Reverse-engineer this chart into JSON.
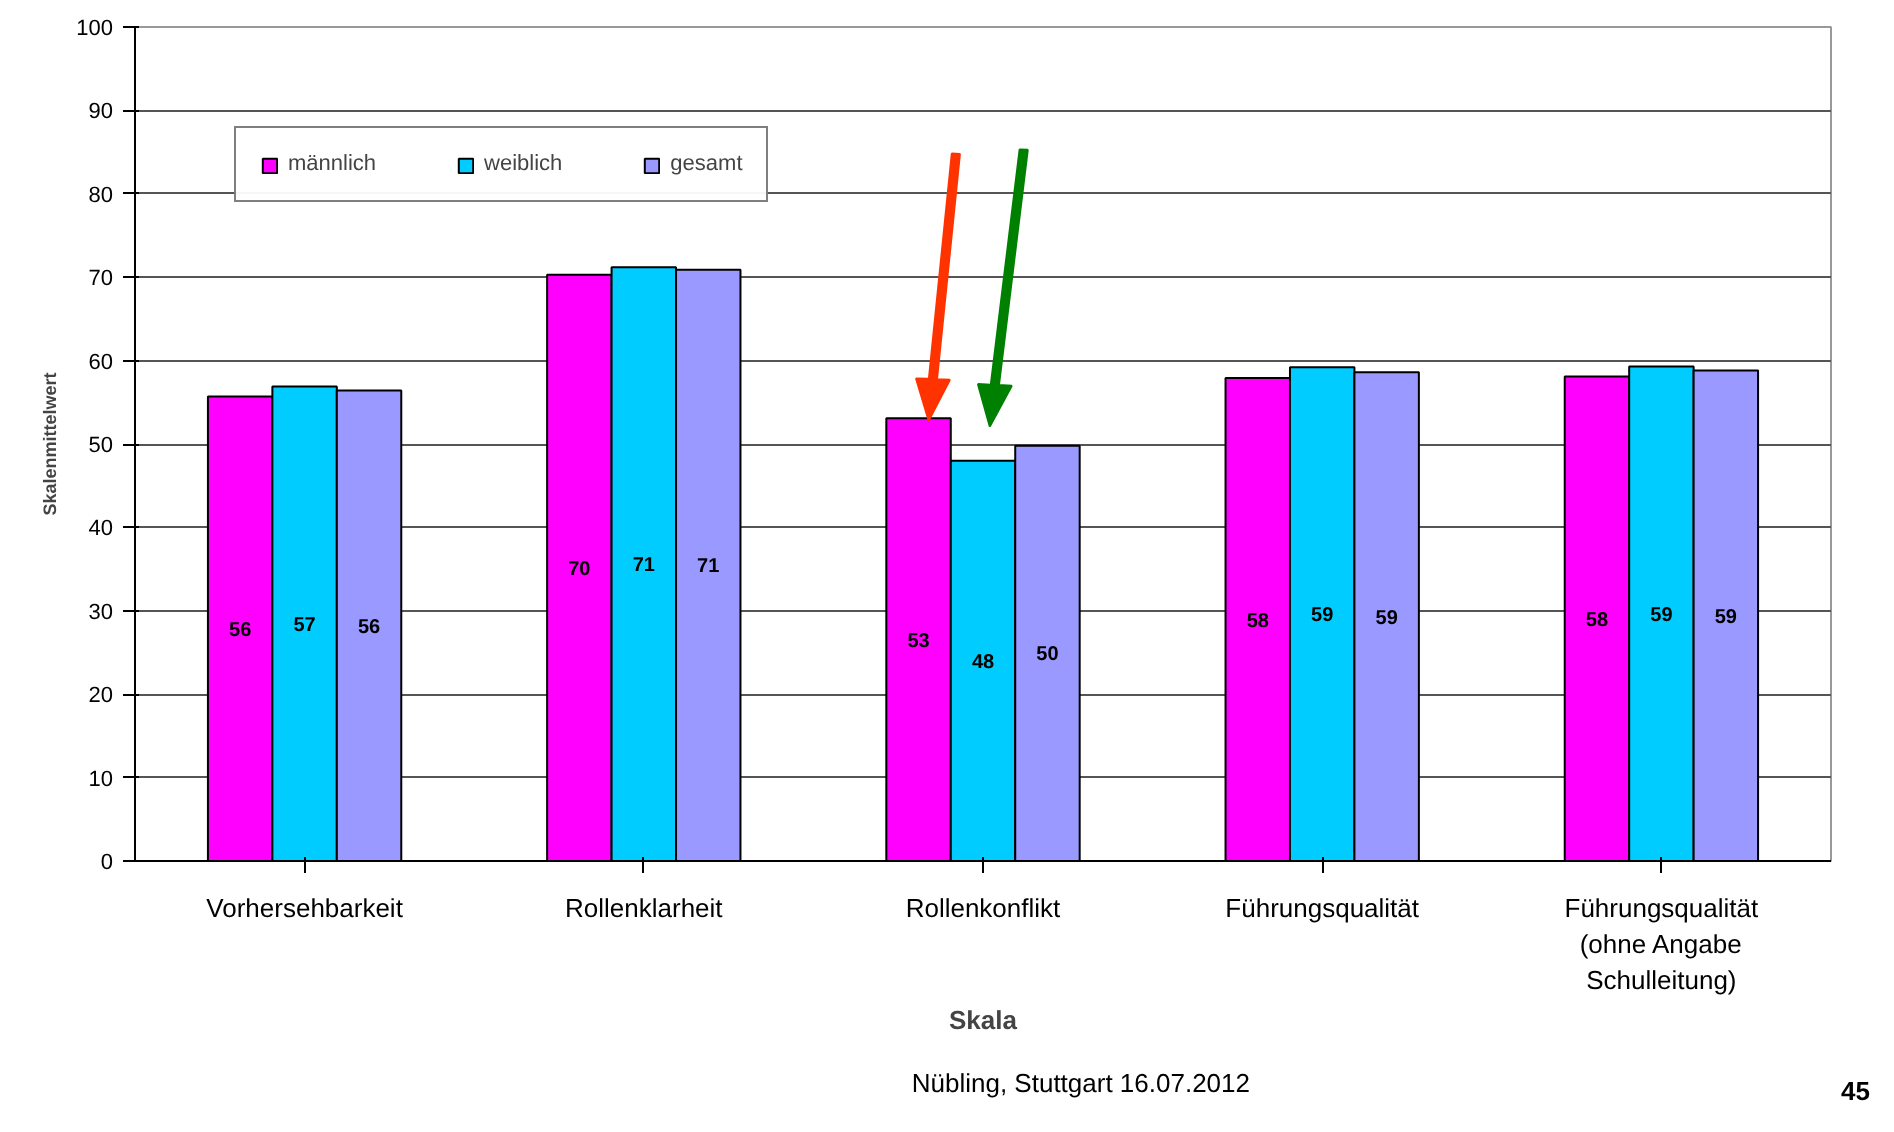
{
  "chart_data": {
    "type": "bar",
    "categories": [
      "Vorhersehbarkeit",
      "Rollenklarheit",
      "Rollenkonflikt",
      "Führungsqualität",
      "Führungsqualität\n(ohne Angabe\nSchulleitung)"
    ],
    "series": [
      {
        "name": "männlich",
        "color": "#ff00ff",
        "values": [
          55.7,
          70.3,
          53.1,
          57.9,
          58.1
        ],
        "value_labels": [
          "56",
          "70",
          "53",
          "58",
          "58"
        ]
      },
      {
        "name": "weiblich",
        "color": "#00ccff",
        "values": [
          56.9,
          71.2,
          48.0,
          59.2,
          59.3
        ],
        "value_labels": [
          "57",
          "71",
          "48",
          "59",
          "59"
        ]
      },
      {
        "name": "gesamt",
        "color": "#9999ff",
        "values": [
          56.4,
          70.9,
          49.8,
          58.6,
          58.8
        ],
        "value_labels": [
          "56",
          "71",
          "50",
          "59",
          "59"
        ]
      }
    ],
    "xlabel": "Skala",
    "ylabel": "Skalenmittelwert",
    "ylim": [
      0,
      100
    ],
    "yticks": [
      0,
      10,
      20,
      30,
      40,
      50,
      60,
      70,
      80,
      90,
      100
    ],
    "grid": "y",
    "legend": "top left",
    "annotations": [
      "Nübling, Stuttgart 16.07.2012",
      "45"
    ]
  }
}
